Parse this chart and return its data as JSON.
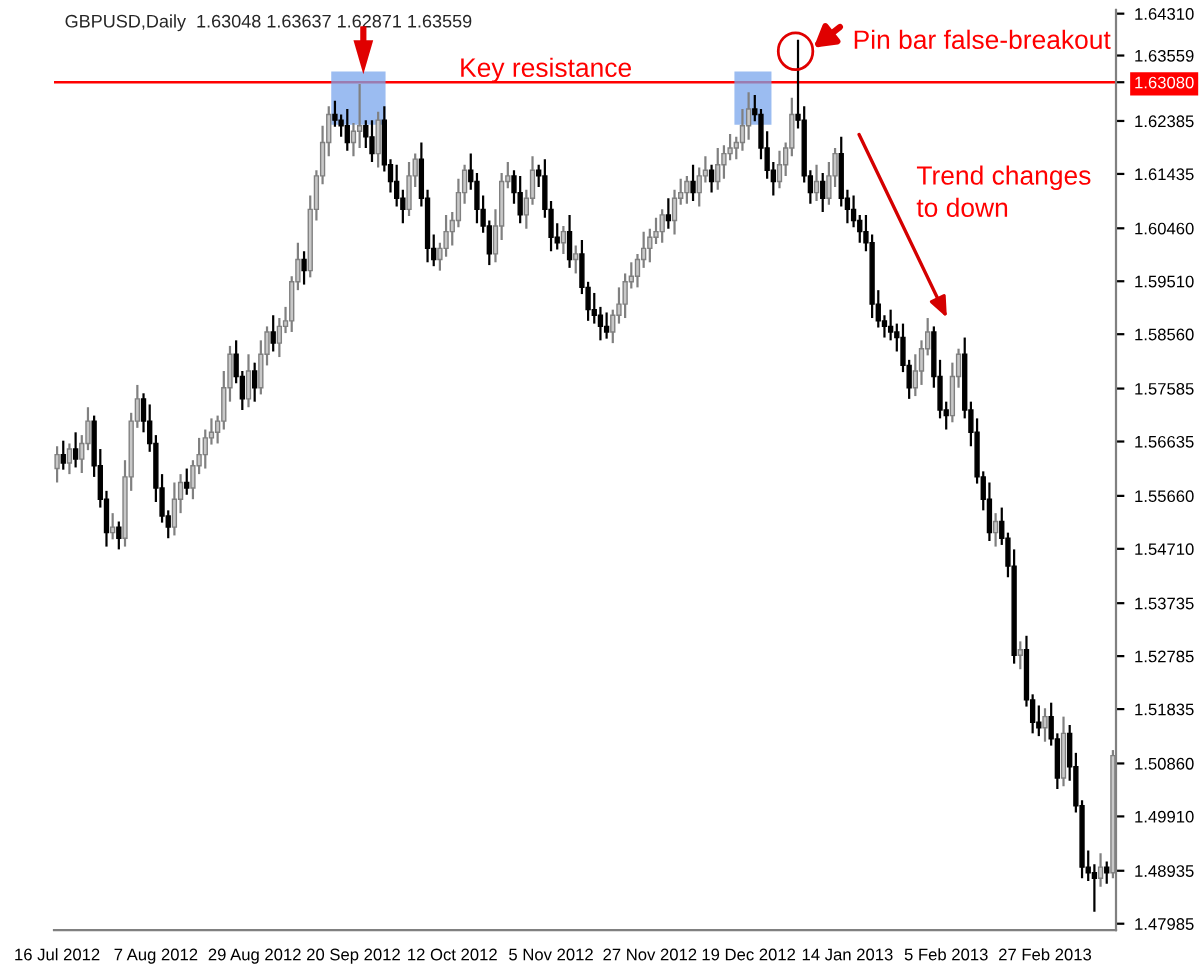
{
  "chart_data": {
    "type": "candlestick",
    "title": "GBPUSD,Daily  1.63048 1.63637 1.62871 1.63559",
    "categories": [
      "16 Jul 2012",
      null,
      null,
      null,
      null,
      null,
      null,
      null,
      null,
      null,
      null,
      null,
      null,
      null,
      null,
      null,
      "7 Aug 2012",
      null,
      null,
      null,
      null,
      null,
      null,
      null,
      null,
      null,
      null,
      null,
      null,
      null,
      null,
      null,
      "29 Aug 2012",
      null,
      null,
      null,
      null,
      null,
      null,
      null,
      null,
      null,
      null,
      null,
      null,
      null,
      null,
      null,
      "20 Sep 2012",
      null,
      null,
      null,
      null,
      null,
      null,
      null,
      null,
      null,
      null,
      null,
      null,
      null,
      null,
      null,
      "12 Oct 2012",
      null,
      null,
      null,
      null,
      null,
      null,
      null,
      null,
      null,
      null,
      null,
      null,
      null,
      null,
      null,
      "5 Nov 2012",
      null,
      null,
      null,
      null,
      null,
      null,
      null,
      null,
      null,
      null,
      null,
      null,
      null,
      null,
      null,
      "27 Nov 2012",
      null,
      null,
      null,
      null,
      null,
      null,
      null,
      null,
      null,
      null,
      null,
      null,
      null,
      null,
      null,
      "19 Dec 2012",
      null,
      null,
      null,
      null,
      null,
      null,
      null,
      null,
      null,
      null,
      null,
      null,
      null,
      null,
      null,
      "14 Jan 2013",
      null,
      null,
      null,
      null,
      null,
      null,
      null,
      null,
      null,
      null,
      null,
      null,
      null,
      null,
      null,
      "5 Feb 2013",
      null,
      null,
      null,
      null,
      null,
      null,
      null,
      null,
      null,
      null,
      null,
      null,
      null,
      null,
      null,
      "27 Feb 2013",
      null,
      null,
      null,
      null,
      null,
      null,
      null,
      null,
      null,
      null,
      null
    ],
    "ohlc": [
      [
        1.5615,
        1.5655,
        1.559,
        1.564
      ],
      [
        1.564,
        1.5665,
        1.5613,
        1.5625
      ],
      [
        1.5625,
        1.566,
        1.5605,
        1.565
      ],
      [
        1.565,
        1.568,
        1.5617,
        1.5632
      ],
      [
        1.5632,
        1.5675,
        1.5607,
        1.566
      ],
      [
        1.566,
        1.5725,
        1.5648,
        1.57
      ],
      [
        1.57,
        1.571,
        1.56,
        1.562
      ],
      [
        1.562,
        1.565,
        1.5545,
        1.556
      ],
      [
        1.556,
        1.5575,
        1.5475,
        1.55
      ],
      [
        1.55,
        1.5535,
        1.5488,
        1.551
      ],
      [
        1.551,
        1.552,
        1.547,
        1.549
      ],
      [
        1.549,
        1.563,
        1.5475,
        1.56
      ],
      [
        1.56,
        1.5715,
        1.5575,
        1.57
      ],
      [
        1.57,
        1.5765,
        1.5688,
        1.574
      ],
      [
        1.574,
        1.575,
        1.568,
        1.57
      ],
      [
        1.57,
        1.573,
        1.5645,
        1.566
      ],
      [
        1.566,
        1.5675,
        1.5555,
        1.558
      ],
      [
        1.558,
        1.5605,
        1.5518,
        1.553
      ],
      [
        1.553,
        1.554,
        1.549,
        1.551
      ],
      [
        1.551,
        1.559,
        1.5495,
        1.556
      ],
      [
        1.556,
        1.5605,
        1.5535,
        1.559
      ],
      [
        1.559,
        1.5615,
        1.5568,
        1.558
      ],
      [
        1.558,
        1.563,
        1.556,
        1.562
      ],
      [
        1.562,
        1.567,
        1.5605,
        1.564
      ],
      [
        1.564,
        1.5685,
        1.5615,
        1.567
      ],
      [
        1.567,
        1.5705,
        1.5658,
        1.568
      ],
      [
        1.568,
        1.571,
        1.566,
        1.57
      ],
      [
        1.57,
        1.579,
        1.5685,
        1.576
      ],
      [
        1.576,
        1.5835,
        1.5735,
        1.582
      ],
      [
        1.582,
        1.5845,
        1.5768,
        1.578
      ],
      [
        1.578,
        1.579,
        1.572,
        1.574
      ],
      [
        1.574,
        1.582,
        1.5725,
        1.579
      ],
      [
        1.579,
        1.5805,
        1.5735,
        1.576
      ],
      [
        1.576,
        1.5845,
        1.5748,
        1.582
      ],
      [
        1.582,
        1.587,
        1.58,
        1.586
      ],
      [
        1.586,
        1.589,
        1.5825,
        1.584
      ],
      [
        1.584,
        1.5885,
        1.5815,
        1.587
      ],
      [
        1.587,
        1.5905,
        1.5858,
        1.588
      ],
      [
        1.588,
        1.596,
        1.586,
        1.595
      ],
      [
        1.595,
        1.602,
        1.5935,
        1.599
      ],
      [
        1.599,
        1.6005,
        1.5945,
        1.597
      ],
      [
        1.597,
        1.6105,
        1.5958,
        1.608
      ],
      [
        1.608,
        1.615,
        1.606,
        1.614
      ],
      [
        1.614,
        1.623,
        1.6125,
        1.62
      ],
      [
        1.62,
        1.6265,
        1.6175,
        1.625
      ],
      [
        1.625,
        1.6275,
        1.6228,
        1.624
      ],
      [
        1.624,
        1.625,
        1.621,
        1.623
      ],
      [
        1.623,
        1.626,
        1.6185,
        1.62
      ],
      [
        1.62,
        1.6235,
        1.6175,
        1.622
      ],
      [
        1.622,
        1.6305,
        1.619,
        1.623
      ],
      [
        1.623,
        1.624,
        1.619,
        1.621
      ],
      [
        1.621,
        1.624,
        1.6165,
        1.618
      ],
      [
        1.618,
        1.6255,
        1.6155,
        1.624
      ],
      [
        1.624,
        1.6265,
        1.6148,
        1.616
      ],
      [
        1.616,
        1.617,
        1.611,
        1.613
      ],
      [
        1.613,
        1.616,
        1.6085,
        1.61
      ],
      [
        1.61,
        1.6115,
        1.6055,
        1.608
      ],
      [
        1.608,
        1.6165,
        1.6068,
        1.614
      ],
      [
        1.614,
        1.618,
        1.612,
        1.617
      ],
      [
        1.617,
        1.62,
        1.6085,
        1.61
      ],
      [
        1.61,
        1.6115,
        1.5985,
        1.601
      ],
      [
        1.601,
        1.6035,
        1.5978,
        1.599
      ],
      [
        1.599,
        1.602,
        1.597,
        1.601
      ],
      [
        1.601,
        1.607,
        1.5995,
        1.604
      ],
      [
        1.604,
        1.6075,
        1.6015,
        1.606
      ],
      [
        1.606,
        1.6135,
        1.6048,
        1.611
      ],
      [
        1.611,
        1.616,
        1.609,
        1.615
      ],
      [
        1.615,
        1.618,
        1.6115,
        1.613
      ],
      [
        1.613,
        1.6145,
        1.6055,
        1.608
      ],
      [
        1.608,
        1.6105,
        1.6038,
        1.605
      ],
      [
        1.605,
        1.606,
        1.598,
        1.6
      ],
      [
        1.6,
        1.608,
        1.5985,
        1.605
      ],
      [
        1.605,
        1.6145,
        1.6025,
        1.613
      ],
      [
        1.613,
        1.6165,
        1.6118,
        1.614
      ],
      [
        1.614,
        1.615,
        1.609,
        1.611
      ],
      [
        1.611,
        1.614,
        1.6055,
        1.607
      ],
      [
        1.607,
        1.6115,
        1.6045,
        1.61
      ],
      [
        1.61,
        1.6175,
        1.6088,
        1.615
      ],
      [
        1.615,
        1.616,
        1.612,
        1.614
      ],
      [
        1.614,
        1.617,
        1.6065,
        1.608
      ],
      [
        1.608,
        1.6095,
        1.6005,
        1.603
      ],
      [
        1.603,
        1.6055,
        1.6008,
        1.602
      ],
      [
        1.602,
        1.605,
        1.6,
        1.604
      ],
      [
        1.604,
        1.607,
        1.5975,
        1.599
      ],
      [
        1.599,
        1.6015,
        1.5965,
        1.6
      ],
      [
        1.6,
        1.6025,
        1.5928,
        1.594
      ],
      [
        1.594,
        1.595,
        1.588,
        1.59
      ],
      [
        1.59,
        1.593,
        1.5875,
        1.589
      ],
      [
        1.589,
        1.5905,
        1.5845,
        1.587
      ],
      [
        1.587,
        1.5895,
        1.5848,
        1.586
      ],
      [
        1.586,
        1.59,
        1.584,
        1.589
      ],
      [
        1.589,
        1.594,
        1.5875,
        1.591
      ],
      [
        1.591,
        1.5965,
        1.5885,
        1.595
      ],
      [
        1.595,
        1.5985,
        1.5938,
        1.596
      ],
      [
        1.596,
        1.6,
        1.594,
        1.599
      ],
      [
        1.599,
        1.604,
        1.5975,
        1.601
      ],
      [
        1.601,
        1.6045,
        1.5985,
        1.603
      ],
      [
        1.603,
        1.6065,
        1.6018,
        1.604
      ],
      [
        1.604,
        1.608,
        1.602,
        1.607
      ],
      [
        1.607,
        1.61,
        1.6045,
        1.606
      ],
      [
        1.606,
        1.6115,
        1.6035,
        1.61
      ],
      [
        1.61,
        1.6135,
        1.6088,
        1.611
      ],
      [
        1.611,
        1.614,
        1.609,
        1.613
      ],
      [
        1.613,
        1.616,
        1.6095,
        1.611
      ],
      [
        1.611,
        1.6155,
        1.6085,
        1.614
      ],
      [
        1.614,
        1.6175,
        1.6128,
        1.615
      ],
      [
        1.615,
        1.616,
        1.611,
        1.613
      ],
      [
        1.613,
        1.619,
        1.6115,
        1.616
      ],
      [
        1.616,
        1.6195,
        1.6135,
        1.618
      ],
      [
        1.618,
        1.6215,
        1.6168,
        1.619
      ],
      [
        1.619,
        1.621,
        1.617,
        1.62
      ],
      [
        1.62,
        1.626,
        1.6185,
        1.623
      ],
      [
        1.623,
        1.629,
        1.6205,
        1.626
      ],
      [
        1.626,
        1.6285,
        1.6238,
        1.625
      ],
      [
        1.625,
        1.626,
        1.617,
        1.619
      ],
      [
        1.619,
        1.622,
        1.6135,
        1.615
      ],
      [
        1.615,
        1.6165,
        1.6105,
        1.613
      ],
      [
        1.613,
        1.6185,
        1.6118,
        1.616
      ],
      [
        1.616,
        1.62,
        1.614,
        1.619
      ],
      [
        1.619,
        1.628,
        1.6175,
        1.625
      ],
      [
        1.625,
        1.6384,
        1.6225,
        1.624
      ],
      [
        1.624,
        1.6265,
        1.6128,
        1.614
      ],
      [
        1.614,
        1.615,
        1.609,
        1.611
      ],
      [
        1.611,
        1.616,
        1.6095,
        1.613
      ],
      [
        1.613,
        1.6145,
        1.6075,
        1.61
      ],
      [
        1.61,
        1.6165,
        1.6088,
        1.614
      ],
      [
        1.614,
        1.619,
        1.612,
        1.618
      ],
      [
        1.618,
        1.621,
        1.6085,
        1.61
      ],
      [
        1.61,
        1.6115,
        1.6055,
        1.608
      ],
      [
        1.608,
        1.6105,
        1.6048,
        1.606
      ],
      [
        1.606,
        1.607,
        1.602,
        1.604
      ],
      [
        1.604,
        1.607,
        1.6005,
        1.602
      ],
      [
        1.602,
        1.6035,
        1.5885,
        1.591
      ],
      [
        1.591,
        1.5935,
        1.5868,
        1.588
      ],
      [
        1.588,
        1.589,
        1.585,
        1.587
      ],
      [
        1.587,
        1.59,
        1.5845,
        1.586
      ],
      [
        1.586,
        1.5875,
        1.5825,
        1.585
      ],
      [
        1.585,
        1.5875,
        1.5788,
        1.58
      ],
      [
        1.58,
        1.581,
        1.574,
        1.576
      ],
      [
        1.576,
        1.582,
        1.5745,
        1.579
      ],
      [
        1.579,
        1.5845,
        1.5765,
        1.583
      ],
      [
        1.583,
        1.5885,
        1.5818,
        1.586
      ],
      [
        1.586,
        1.587,
        1.576,
        1.578
      ],
      [
        1.578,
        1.581,
        1.5705,
        1.572
      ],
      [
        1.572,
        1.5735,
        1.5685,
        1.571
      ],
      [
        1.571,
        1.5805,
        1.5698,
        1.578
      ],
      [
        1.578,
        1.583,
        1.576,
        1.582
      ],
      [
        1.582,
        1.585,
        1.5705,
        1.572
      ],
      [
        1.572,
        1.5735,
        1.5655,
        1.568
      ],
      [
        1.568,
        1.5705,
        1.5588,
        1.56
      ],
      [
        1.56,
        1.561,
        1.554,
        1.556
      ],
      [
        1.556,
        1.559,
        1.5485,
        1.55
      ],
      [
        1.55,
        1.5535,
        1.5475,
        1.552
      ],
      [
        1.552,
        1.5545,
        1.5478,
        1.549
      ],
      [
        1.549,
        1.55,
        1.542,
        1.544
      ],
      [
        1.544,
        1.547,
        1.5265,
        1.528
      ],
      [
        1.528,
        1.5305,
        1.5255,
        1.529
      ],
      [
        1.529,
        1.5315,
        1.5188,
        1.52
      ],
      [
        1.52,
        1.521,
        1.514,
        1.516
      ],
      [
        1.516,
        1.519,
        1.5135,
        1.515
      ],
      [
        1.515,
        1.5185,
        1.5125,
        1.517
      ],
      [
        1.517,
        1.5195,
        1.5118,
        1.513
      ],
      [
        1.513,
        1.514,
        1.504,
        1.506
      ],
      [
        1.506,
        1.517,
        1.5045,
        1.514
      ],
      [
        1.514,
        1.5155,
        1.5055,
        1.508
      ],
      [
        1.508,
        1.5105,
        1.4998,
        1.501
      ],
      [
        1.501,
        1.502,
        1.488,
        1.49
      ],
      [
        1.49,
        1.493,
        1.4875,
        1.489
      ],
      [
        1.489,
        1.4905,
        1.482,
        1.488
      ],
      [
        1.488,
        1.4925,
        1.4865,
        1.49
      ],
      [
        1.49,
        1.491,
        1.487,
        1.489
      ],
      [
        1.489,
        1.511,
        1.488,
        1.51
      ]
    ],
    "ylim": [
      1.4787,
      1.6438
    ],
    "yticks": [
      {
        "value": 1.6431,
        "label": "1.64310"
      },
      {
        "value": 1.63559,
        "label": "1.63559"
      },
      {
        "value": 1.6308,
        "label": "1.63080"
      },
      {
        "value": 1.62385,
        "label": "1.62385"
      },
      {
        "value": 1.61435,
        "label": "1.61435"
      },
      {
        "value": 1.6046,
        "label": "1.60460"
      },
      {
        "value": 1.5951,
        "label": "1.59510"
      },
      {
        "value": 1.5856,
        "label": "1.58560"
      },
      {
        "value": 1.57585,
        "label": "1.57585"
      },
      {
        "value": 1.56635,
        "label": "1.56635"
      },
      {
        "value": 1.5566,
        "label": "1.55660"
      },
      {
        "value": 1.5471,
        "label": "1.54710"
      },
      {
        "value": 1.53735,
        "label": "1.53735"
      },
      {
        "value": 1.52785,
        "label": "1.52785"
      },
      {
        "value": 1.51835,
        "label": "1.51835"
      },
      {
        "value": 1.5086,
        "label": "1.50860"
      },
      {
        "value": 1.4991,
        "label": "1.49910"
      },
      {
        "value": 1.48935,
        "label": "1.48935"
      },
      {
        "value": 1.47985,
        "label": "1.47985"
      }
    ],
    "ref_lines": [
      {
        "axis": "y",
        "value": 1.6308,
        "label": "Key resistance",
        "color": "#ff0000"
      }
    ],
    "annotations": [
      "Pin bar false-breakout",
      "Trend changes\nto down"
    ],
    "grid": false,
    "legend": false
  }
}
